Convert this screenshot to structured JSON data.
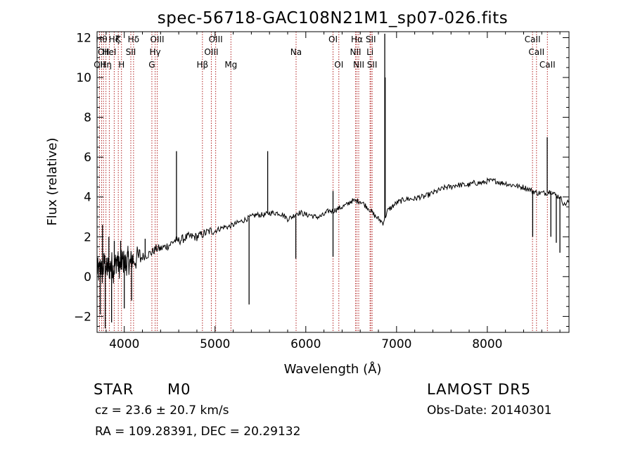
{
  "chart_data": {
    "type": "line",
    "title": "spec-56718-GAC108N21M1_sp07-026.fits",
    "xlabel": "Wavelength (Å)",
    "ylabel": "Flux (relative)",
    "xlim": [
      3700,
      8900
    ],
    "ylim": [
      -2.8,
      12.3
    ],
    "xticks": [
      4000,
      5000,
      6000,
      7000,
      8000
    ],
    "xtick_labels": [
      "4000",
      "5000",
      "6000",
      "7000",
      "8000"
    ],
    "yticks": [
      -2,
      0,
      2,
      4,
      6,
      8,
      10,
      12
    ],
    "ytick_labels": [
      "−2",
      "0",
      "2",
      "4",
      "6",
      "8",
      "10",
      "12"
    ],
    "grid": false,
    "line_color": "#000000",
    "marker_line_color": "#b22222",
    "series": [
      {
        "values_x": [
          3700,
          3720,
          3740,
          3760,
          3780,
          3800,
          3820,
          3840,
          3860,
          3880,
          3900,
          3920,
          3940,
          3960,
          3980,
          4000,
          4020,
          4040,
          4060,
          4080,
          4100,
          4150,
          4200,
          4250,
          4300,
          4350,
          4400,
          4450,
          4500,
          4550,
          4600,
          4650,
          4700,
          4750,
          4800,
          4850,
          4900,
          4950,
          5000,
          5050,
          5100,
          5150,
          5200,
          5250,
          5300,
          5350,
          5400,
          5450,
          5500,
          5550,
          5600,
          5650,
          5700,
          5750,
          5800,
          5850,
          5900,
          5950,
          6000,
          6050,
          6100,
          6150,
          6200,
          6250,
          6300,
          6350,
          6400,
          6450,
          6500,
          6550,
          6600,
          6650,
          6700,
          6750,
          6800,
          6850,
          6900,
          6950,
          7000,
          7050,
          7100,
          7150,
          7200,
          7250,
          7300,
          7350,
          7400,
          7450,
          7500,
          7550,
          7600,
          7650,
          7700,
          7750,
          7800,
          7850,
          7900,
          7950,
          8000,
          8050,
          8100,
          8150,
          8200,
          8250,
          8300,
          8350,
          8400,
          8450,
          8500,
          8550,
          8600,
          8650,
          8700,
          8750,
          8800,
          8850,
          8900
        ],
        "values_y": [
          0.4,
          0.2,
          0.6,
          0.1,
          0.8,
          0.3,
          0.5,
          0.4,
          0.7,
          0.3,
          0.6,
          0.9,
          0.5,
          0.6,
          0.8,
          0.7,
          0.6,
          0.9,
          0.6,
          0.8,
          0.9,
          0.9,
          1.0,
          1.1,
          1.2,
          1.4,
          1.4,
          1.5,
          1.6,
          1.8,
          1.8,
          1.9,
          2.0,
          2.0,
          2.0,
          2.1,
          2.2,
          2.3,
          2.3,
          2.4,
          2.5,
          2.5,
          2.6,
          2.7,
          2.8,
          2.9,
          3.0,
          3.1,
          3.1,
          3.1,
          3.2,
          3.2,
          3.2,
          3.1,
          2.9,
          3.0,
          3.2,
          3.2,
          3.1,
          3.1,
          3.0,
          3.0,
          3.1,
          3.3,
          3.3,
          3.4,
          3.5,
          3.6,
          3.8,
          3.8,
          3.8,
          3.6,
          3.4,
          3.1,
          2.9,
          2.7,
          3.3,
          3.5,
          3.7,
          3.8,
          3.9,
          3.9,
          3.9,
          4.0,
          4.0,
          4.1,
          4.2,
          4.3,
          4.4,
          4.5,
          4.5,
          4.6,
          4.6,
          4.6,
          4.6,
          4.7,
          4.7,
          4.7,
          4.8,
          4.8,
          4.8,
          4.7,
          4.7,
          4.6,
          4.6,
          4.5,
          4.5,
          4.4,
          4.3,
          4.2,
          4.2,
          4.2,
          4.3,
          4.1,
          4.0,
          3.6,
          3.8
        ]
      }
    ],
    "spikes": [
      {
        "x": 4575,
        "y": 6.3
      },
      {
        "x": 5375,
        "y": -1.4
      },
      {
        "x": 5580,
        "y": 6.3
      },
      {
        "x": 5890,
        "y": 0.9
      },
      {
        "x": 6300,
        "y": 1.0
      },
      {
        "x": 6300,
        "y": 4.3
      },
      {
        "x": 6870,
        "y": 12.2
      },
      {
        "x": 6875,
        "y": 10.0
      },
      {
        "x": 8500,
        "y": 2.0
      },
      {
        "x": 8660,
        "y": 7.0
      },
      {
        "x": 8700,
        "y": 2.0
      },
      {
        "x": 8760,
        "y": 1.7
      },
      {
        "x": 8800,
        "y": 1.2
      },
      {
        "x": 3735,
        "y": -1.9
      },
      {
        "x": 3760,
        "y": 2.6
      },
      {
        "x": 3790,
        "y": -2.6
      },
      {
        "x": 3830,
        "y": 2.0
      },
      {
        "x": 3860,
        "y": -2.3
      },
      {
        "x": 3890,
        "y": 1.8
      },
      {
        "x": 3960,
        "y": 1.8
      },
      {
        "x": 4000,
        "y": -1.6
      },
      {
        "x": 4080,
        "y": -1.2
      },
      {
        "x": 4230,
        "y": 1.9
      }
    ],
    "line_markers": [
      {
        "x": 3727,
        "labels": [
          "OII"
        ],
        "row": 3
      },
      {
        "x": 3750,
        "labels": [
          "Hθ"
        ],
        "row": 1
      },
      {
        "x": 3771,
        "labels": [
          "OII"
        ],
        "row": 2
      },
      {
        "x": 3798,
        "labels": [
          "Hη"
        ],
        "row": 3
      },
      {
        "x": 3835,
        "labels": [
          "HeI"
        ],
        "row": 2
      },
      {
        "x": 3889,
        "labels": [
          "Hζ"
        ],
        "row": 1
      },
      {
        "x": 3934,
        "labels": [
          "K"
        ],
        "row": 1
      },
      {
        "x": 3969,
        "labels": [
          "H"
        ],
        "row": 3
      },
      {
        "x": 4072,
        "labels": [
          "SII"
        ],
        "row": 2
      },
      {
        "x": 4102,
        "labels": [
          "Hδ"
        ],
        "row": 1
      },
      {
        "x": 4304,
        "labels": [
          "G"
        ],
        "row": 3
      },
      {
        "x": 4340,
        "labels": [
          "Hγ"
        ],
        "row": 2
      },
      {
        "x": 4363,
        "labels": [
          "OIII"
        ],
        "row": 1
      },
      {
        "x": 4861,
        "labels": [
          "Hβ"
        ],
        "row": 3
      },
      {
        "x": 4959,
        "labels": [
          "OIII"
        ],
        "row": 2
      },
      {
        "x": 5007,
        "labels": [
          "OIII"
        ],
        "row": 1
      },
      {
        "x": 5175,
        "labels": [
          "Mg"
        ],
        "row": 3
      },
      {
        "x": 5893,
        "labels": [
          "Na"
        ],
        "row": 2
      },
      {
        "x": 6300,
        "labels": [
          "OI"
        ],
        "row": 1
      },
      {
        "x": 6364,
        "labels": [
          "OI"
        ],
        "row": 3
      },
      {
        "x": 6548,
        "labels": [
          "NII"
        ],
        "row": 2
      },
      {
        "x": 6563,
        "labels": [
          "Hα"
        ],
        "row": 1
      },
      {
        "x": 6583,
        "labels": [
          "NII"
        ],
        "row": 3
      },
      {
        "x": 6708,
        "labels": [
          "Li"
        ],
        "row": 2
      },
      {
        "x": 6716,
        "labels": [
          "SII"
        ],
        "row": 1
      },
      {
        "x": 6731,
        "labels": [
          "SII"
        ],
        "row": 3
      },
      {
        "x": 8498,
        "labels": [
          "CaII"
        ],
        "row": 1
      },
      {
        "x": 8542,
        "labels": [
          "CaII"
        ],
        "row": 2
      },
      {
        "x": 8662,
        "labels": [
          "CaII"
        ],
        "row": 3
      }
    ]
  },
  "info": {
    "object_class": "STAR",
    "subclass": "M0",
    "survey": "LAMOST DR5",
    "cz": "cz = 23.6 ± 20.7 km/s",
    "obs_date": "Obs-Date: 20140301",
    "coords": "RA = 109.28391, DEC =  20.29132"
  }
}
